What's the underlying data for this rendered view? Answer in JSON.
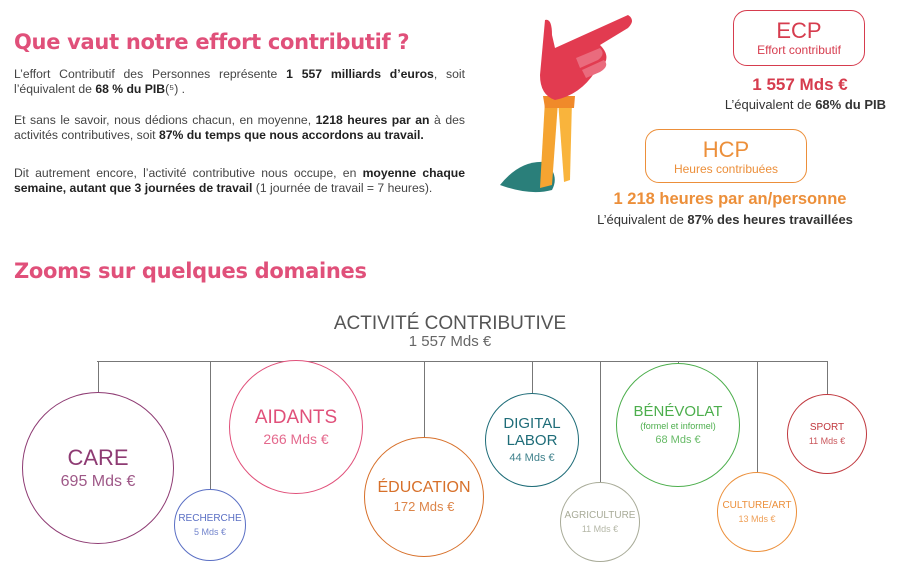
{
  "intro": {
    "title": "Que vaut notre effort contributif ?",
    "p1": {
      "a": "L’effort Contributif des Personnes représente ",
      "b": "1 557 milliards d’euros",
      "c": ", soit l’équivalent de ",
      "d": "68 % du PIB",
      "e": "(⁵) ."
    },
    "p2": {
      "a": "Et sans le savoir, nous dédions chacun, en moyenne, ",
      "b": "1218 heures par an",
      "c": " à des activités contributives, soit ",
      "d": "87% du temps que nous accordons au travail."
    },
    "p3": {
      "a": "Dit autrement encore, l’activité contributive nous occupe, en ",
      "b": "moyenne chaque semaine, autant que 3 journées de travail",
      "c": " (1 journée de travail = 7 heures)."
    }
  },
  "ecp": {
    "acronym": "ECP",
    "label": "Effort contributif",
    "value": "1 557 Mds €",
    "note_a": "L’équivalent de ",
    "note_b": "68% du PIB",
    "color": "#d63c4e"
  },
  "hcp": {
    "acronym": "HCP",
    "label": "Heures contribuées",
    "value": "1 218 heures par an/personne",
    "note_a": "L’équivalent de ",
    "note_b": "87% des heures travaillées",
    "color": "#ec8f3a"
  },
  "zooms": {
    "title": "Zooms sur quelques domaines",
    "root_title": "ACTIVITÉ CONTRIBUTIVE",
    "root_value": "1 557 Mds €",
    "domains": [
      {
        "name": "CARE",
        "value": "695 Mds €",
        "color": "#8e3b73"
      },
      {
        "name": "RECHERCHE",
        "value": "5 Mds €",
        "color": "#5a6fc4"
      },
      {
        "name": "AIDANTS",
        "value": "266 Mds €",
        "color": "#e0507a"
      },
      {
        "name": "ÉDUCATION",
        "value": "172 Mds €",
        "color": "#d7702a"
      },
      {
        "name": "DIGITAL LABOR",
        "value": "44 Mds €",
        "color": "#1e6c78"
      },
      {
        "name": "AGRICULTURE",
        "value": "11 Mds €",
        "color": "#a8ab98"
      },
      {
        "name": "BÉNÉVOLAT",
        "sub": "(formel et informel)",
        "value": "68 Mds €",
        "color": "#4cae4c"
      },
      {
        "name": "CULTURE/ART",
        "value": "13 Mds €",
        "color": "#ec8f3a"
      },
      {
        "name": "SPORT",
        "value": "11 Mds €",
        "color": "#c0383e"
      }
    ]
  }
}
